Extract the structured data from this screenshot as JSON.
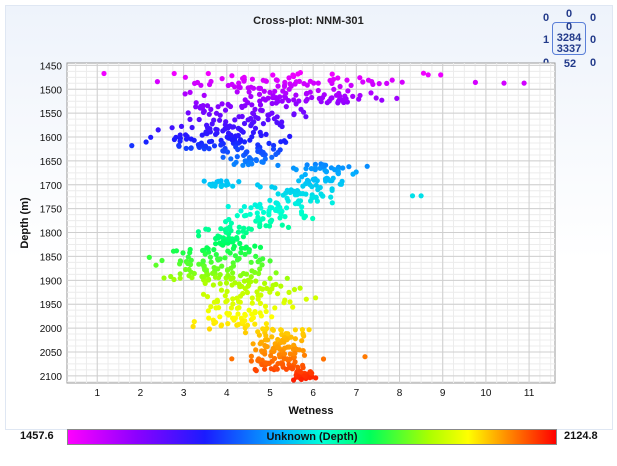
{
  "chart_data": {
    "type": "scatter",
    "title": "Cross-plot: NNM-301",
    "xlabel": "Wetness",
    "ylabel": "Depth (m)",
    "xlim": [
      0.3,
      11.6
    ],
    "ylim": [
      1445,
      2115
    ],
    "y_inverted": true,
    "x_ticks": [
      1,
      2,
      3,
      4,
      5,
      6,
      7,
      8,
      9,
      10,
      11
    ],
    "y_ticks": [
      1450,
      1500,
      1550,
      1600,
      1650,
      1700,
      1750,
      1800,
      1850,
      1900,
      1950,
      2000,
      2050,
      2100
    ],
    "grid": true,
    "color_by": {
      "label": "Unknown (Depth)",
      "min": "1457.6",
      "max": "2124.8",
      "colors": [
        "#ff00ff",
        "#8c00ff",
        "#1b1bff",
        "#00b4ff",
        "#00ffd8",
        "#00ff5a",
        "#aaff00",
        "#ffff00",
        "#ff8c00",
        "#ff0000"
      ]
    },
    "point_clusters": [
      {
        "depth_range": [
          1465,
          1490
        ],
        "x_range": [
          0.4,
          11.6
        ],
        "count": 60
      },
      {
        "depth_range": [
          1490,
          1530
        ],
        "x_range": [
          2.5,
          8.5
        ],
        "count": 90
      },
      {
        "depth_range": [
          1530,
          1580
        ],
        "x_range": [
          2.6,
          6.2
        ],
        "count": 70
      },
      {
        "depth_range": [
          1580,
          1625
        ],
        "x_range": [
          1.8,
          5.8
        ],
        "count": 90
      },
      {
        "depth_range": [
          1625,
          1660
        ],
        "x_range": [
          3.6,
          5.4
        ],
        "count": 40
      },
      {
        "depth_range": [
          1655,
          1700
        ],
        "x_range": [
          5.2,
          7.4
        ],
        "count": 50
      },
      {
        "depth_range": [
          1690,
          1705
        ],
        "x_range": [
          3.1,
          4.4
        ],
        "count": 20
      },
      {
        "depth_range": [
          1700,
          1740
        ],
        "x_range": [
          4.2,
          7.0
        ],
        "count": 50
      },
      {
        "depth_range": [
          1740,
          1790
        ],
        "x_range": [
          3.6,
          6.3
        ],
        "count": 55
      },
      {
        "depth_range": [
          1790,
          1830
        ],
        "x_range": [
          3.0,
          5.2
        ],
        "count": 40
      },
      {
        "depth_range": [
          1830,
          1900
        ],
        "x_range": [
          1.7,
          5.8
        ],
        "count": 110
      },
      {
        "depth_range": [
          1900,
          1960
        ],
        "x_range": [
          2.9,
          6.2
        ],
        "count": 70
      },
      {
        "depth_range": [
          1960,
          2000
        ],
        "x_range": [
          3.0,
          5.6
        ],
        "count": 40
      },
      {
        "depth_range": [
          2000,
          2050
        ],
        "x_range": [
          4.3,
          6.2
        ],
        "count": 70
      },
      {
        "depth_range": [
          2050,
          2090
        ],
        "x_range": [
          3.9,
          6.4
        ],
        "count": 60
      },
      {
        "depth_range": [
          2090,
          2110
        ],
        "x_range": [
          5.4,
          6.2
        ],
        "count": 30
      }
    ],
    "outliers": [
      {
        "x": 8.3,
        "y": 1723
      },
      {
        "x": 8.5,
        "y": 1723
      },
      {
        "x": 7.2,
        "y": 2060
      },
      {
        "x": 1.8,
        "y": 1618
      },
      {
        "x": 3.6,
        "y": 2002
      }
    ]
  },
  "quadrant_counts": {
    "top_left": "0",
    "top_center": "0",
    "top_right": "0",
    "mid_left": "1",
    "center_top": "0",
    "center_mid": "3284",
    "center_bottom": "3337",
    "mid_right": "0",
    "bottom_left": "0",
    "bottom_center": "52",
    "bottom_right": "0"
  }
}
